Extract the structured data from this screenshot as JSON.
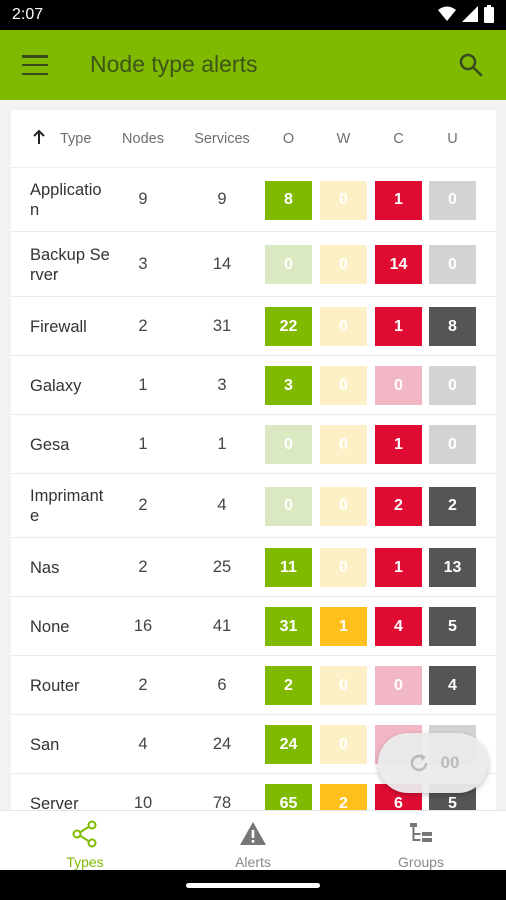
{
  "status_bar": {
    "time": "2:07"
  },
  "app_bar": {
    "title": "Node type alerts"
  },
  "table": {
    "headers": {
      "type": "Type",
      "nodes": "Nodes",
      "services": "Services",
      "o": "O",
      "w": "W",
      "c": "C",
      "u": "U"
    },
    "rows": [
      {
        "type": "Application",
        "nodes": "9",
        "services": "9",
        "o": "8",
        "w": "0",
        "c": "1",
        "u": "0"
      },
      {
        "type": "Backup Server",
        "nodes": "3",
        "services": "14",
        "o": "0",
        "w": "0",
        "c": "14",
        "u": "0"
      },
      {
        "type": "Firewall",
        "nodes": "2",
        "services": "31",
        "o": "22",
        "w": "0",
        "c": "1",
        "u": "8"
      },
      {
        "type": "Galaxy",
        "nodes": "1",
        "services": "3",
        "o": "3",
        "w": "0",
        "c": "0",
        "u": "0"
      },
      {
        "type": "Gesa",
        "nodes": "1",
        "services": "1",
        "o": "0",
        "w": "0",
        "c": "1",
        "u": "0"
      },
      {
        "type": "Imprimante",
        "nodes": "2",
        "services": "4",
        "o": "0",
        "w": "0",
        "c": "2",
        "u": "2"
      },
      {
        "type": "Nas",
        "nodes": "2",
        "services": "25",
        "o": "11",
        "w": "0",
        "c": "1",
        "u": "13"
      },
      {
        "type": "None",
        "nodes": "16",
        "services": "41",
        "o": "31",
        "w": "1",
        "c": "4",
        "u": "5"
      },
      {
        "type": "Router",
        "nodes": "2",
        "services": "6",
        "o": "2",
        "w": "0",
        "c": "0",
        "u": "4"
      },
      {
        "type": "San",
        "nodes": "4",
        "services": "24",
        "o": "24",
        "w": "0",
        "c": "",
        "u": ""
      },
      {
        "type": "Server",
        "nodes": "10",
        "services": "78",
        "o": "65",
        "w": "2",
        "c": "6",
        "u": "5"
      }
    ]
  },
  "refresh_fab": {
    "label": "00"
  },
  "bottom_nav": {
    "items": [
      {
        "label": "Types",
        "icon": "share-icon",
        "active": true
      },
      {
        "label": "Alerts",
        "icon": "warning-icon",
        "active": false
      },
      {
        "label": "Groups",
        "icon": "groups-icon",
        "active": false
      }
    ]
  },
  "colors": {
    "accent": "#7fba00",
    "ok": "#7fba00",
    "warning": "#ffbf1d",
    "critical": "#df0b33",
    "unknown": "#555555"
  }
}
